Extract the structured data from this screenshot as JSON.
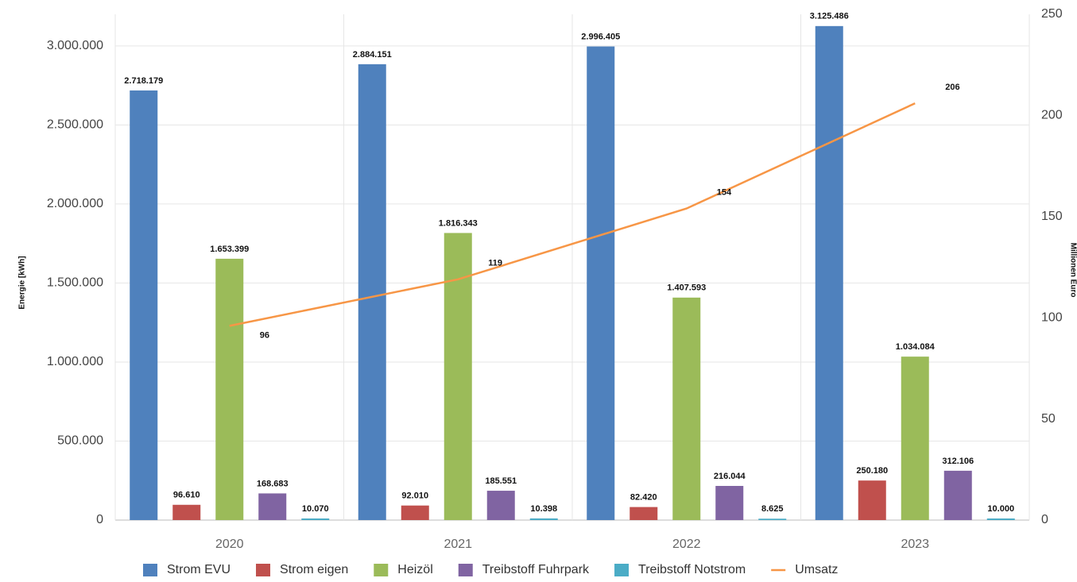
{
  "chart_data": {
    "type": "bar-line",
    "y_label": "Energie [kWh]",
    "y2_label": "Millionen Euro",
    "categories": [
      "2020",
      "2021",
      "2022",
      "2023"
    ],
    "series": [
      {
        "name": "Strom EVU",
        "type": "bar",
        "color": "#4f81bd",
        "values": [
          2718179,
          2884151,
          2996405,
          3125486
        ],
        "value_labels": [
          "2.718.179",
          "2.884.151",
          "2.996.405",
          "3.125.486"
        ]
      },
      {
        "name": "Strom eigen",
        "type": "bar",
        "color": "#c0504d",
        "values": [
          96610,
          92010,
          82420,
          250180
        ],
        "value_labels": [
          "96.610",
          "92.010",
          "82.420",
          "250.180"
        ]
      },
      {
        "name": "Heizöl",
        "type": "bar",
        "color": "#9bbb59",
        "values": [
          1653399,
          1816343,
          1407593,
          1034084
        ],
        "value_labels": [
          "1.653.399",
          "1.816.343",
          "1.407.593",
          "1.034.084"
        ]
      },
      {
        "name": "Treibstoff Fuhrpark",
        "type": "bar",
        "color": "#8064a2",
        "values": [
          168683,
          185551,
          216044,
          312106
        ],
        "value_labels": [
          "168.683",
          "185.551",
          "216.044",
          "312.106"
        ]
      },
      {
        "name": "Treibstoff Notstrom",
        "type": "bar",
        "color": "#4bacc6",
        "values": [
          10070,
          10398,
          8625,
          10000
        ],
        "value_labels": [
          "10.070",
          "10.398",
          "8.625",
          "10.000"
        ]
      },
      {
        "name": "Umsatz",
        "type": "line",
        "axis": "y2",
        "color": "#f79646",
        "values": [
          96,
          119,
          154,
          206
        ]
      }
    ],
    "ylim": [
      0,
      3200000
    ],
    "yticks": [
      0,
      {
        "value": 500000,
        "label": "500.000"
      },
      {
        "value": 1000000,
        "label": "1.000.000"
      },
      {
        "value": 1500000,
        "label": "1.500.000"
      },
      {
        "value": 2000000,
        "label": "2.000.000"
      },
      {
        "value": 2500000,
        "label": "2.500.000"
      },
      {
        "value": 3000000,
        "label": "3.000.000"
      }
    ],
    "y2lim": [
      0,
      250
    ],
    "y2ticks": [
      0,
      50,
      100,
      150,
      200,
      250
    ],
    "grid": true,
    "legend": "bottom"
  }
}
